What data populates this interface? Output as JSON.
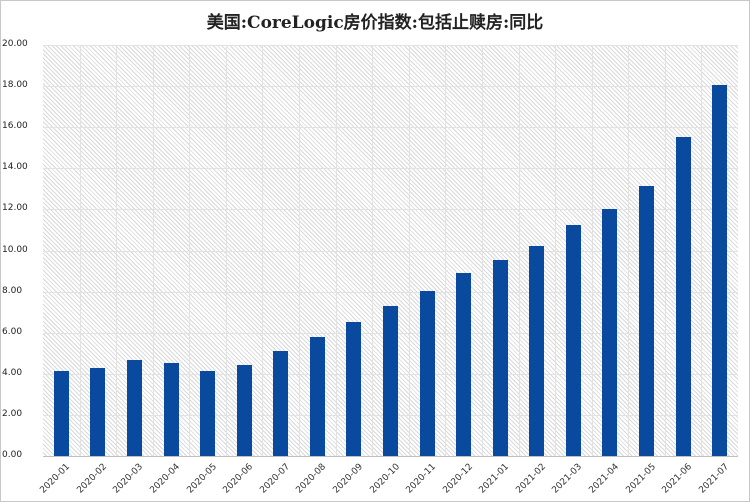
{
  "chart_data": {
    "type": "bar",
    "title": "美国:CoreLogic房价指数:包括止赎房:同比",
    "xlabel": "",
    "ylabel": "",
    "ylim": [
      0,
      20
    ],
    "yticks": [
      "0.00",
      "2.00",
      "4.00",
      "6.00",
      "8.00",
      "10.00",
      "12.00",
      "14.00",
      "16.00",
      "18.00",
      "20.00"
    ],
    "grid": true,
    "legend": null,
    "bar_color": "#0a4a9e",
    "categories": [
      "2020-01",
      "2020-02",
      "2020-03",
      "2020-04",
      "2020-05",
      "2020-06",
      "2020-07",
      "2020-08",
      "2020-09",
      "2020-10",
      "2020-11",
      "2020-12",
      "2021-01",
      "2021-02",
      "2021-03",
      "2021-04",
      "2021-05",
      "2021-06",
      "2021-07"
    ],
    "values": [
      4.16,
      4.28,
      4.65,
      4.55,
      4.16,
      4.43,
      5.13,
      5.77,
      6.52,
      7.32,
      8.05,
      8.91,
      9.54,
      10.24,
      11.26,
      12.0,
      13.16,
      15.52,
      18.03
    ]
  }
}
